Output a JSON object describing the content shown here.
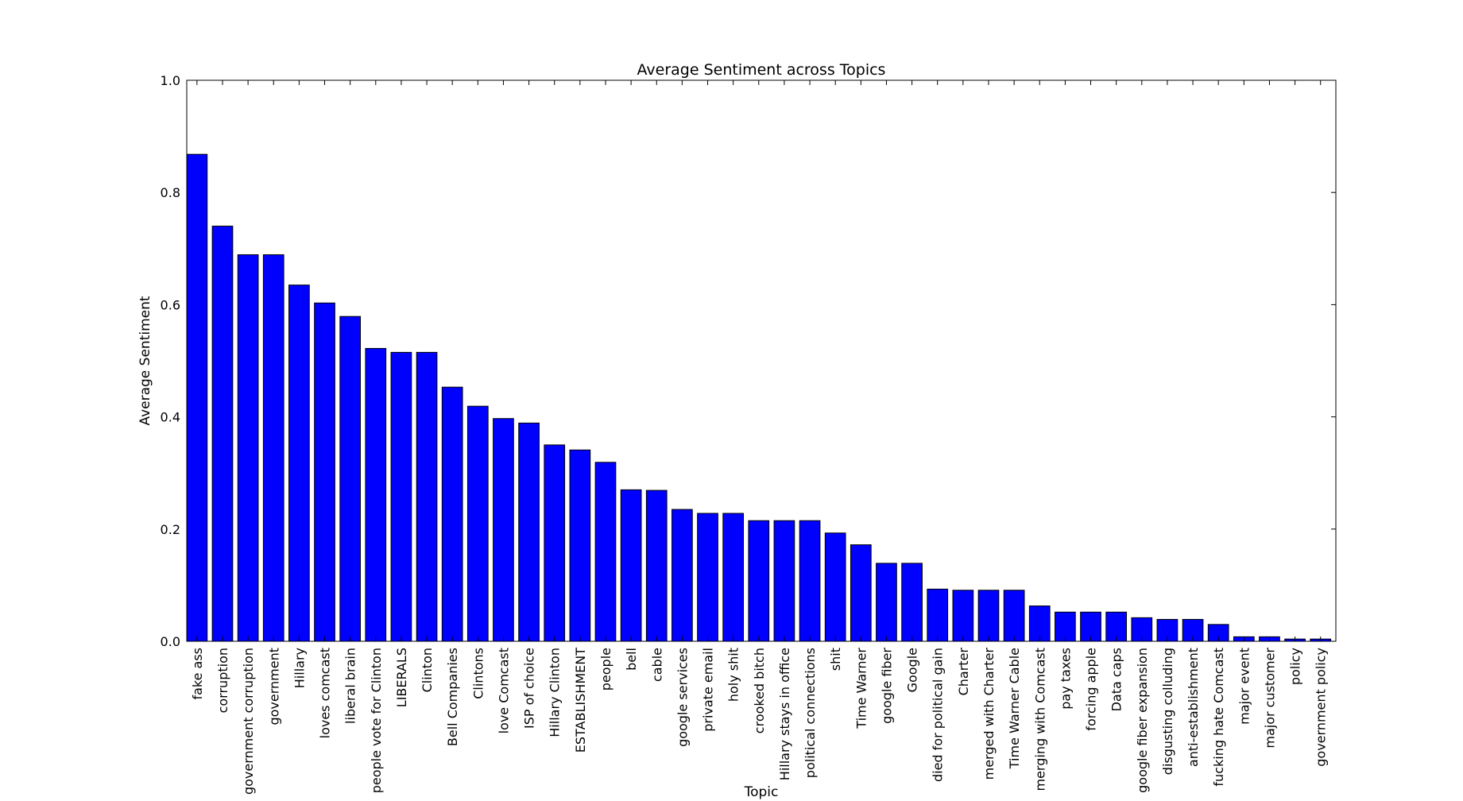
{
  "chart_data": {
    "type": "bar",
    "title": "Average Sentiment across Topics",
    "xlabel": "Topic",
    "ylabel": "Average Sentiment",
    "categories": [
      "fake ass",
      "corruption",
      "government corruption",
      "government",
      "Hillary",
      "loves comcast",
      "liberal brain",
      "people vote for Clinton",
      "LIBERALS",
      "Clinton",
      "Bell Companies",
      "Clintons",
      "love Comcast",
      "ISP of choice",
      "Hillary Clinton",
      "ESTABLISHMENT",
      "people",
      "bell",
      "cable",
      "google services",
      "private email",
      "holy shit",
      "crooked bitch",
      "Hillary stays in office",
      "political connections",
      "shit",
      "Time Warner",
      "google fiber",
      "Google",
      "died for political gain",
      "Charter",
      "merged with Charter",
      "Time Warner Cable",
      "merging with Comcast",
      "pay taxes",
      "forcing apple",
      "Data caps",
      "google fiber expansion",
      "disgusting colluding",
      "anti-establishment",
      "fucking hate Comcast",
      "major event",
      "major customer",
      "policy",
      "government policy"
    ],
    "values": [
      0.868,
      0.74,
      0.689,
      0.689,
      0.635,
      0.603,
      0.579,
      0.522,
      0.515,
      0.515,
      0.453,
      0.419,
      0.397,
      0.389,
      0.35,
      0.341,
      0.319,
      0.27,
      0.269,
      0.235,
      0.228,
      0.228,
      0.215,
      0.215,
      0.215,
      0.193,
      0.172,
      0.139,
      0.139,
      0.093,
      0.091,
      0.091,
      0.091,
      0.063,
      0.052,
      0.052,
      0.052,
      0.042,
      0.039,
      0.039,
      0.03,
      0.008,
      0.008,
      0.004,
      0.004
    ],
    "color": "#0000ff",
    "ylim": [
      0,
      1
    ],
    "yticks": [
      {
        "value": 0,
        "label": "0.0"
      },
      {
        "value": 0.2,
        "label": "0.2"
      },
      {
        "value": 0.4,
        "label": "0.4"
      },
      {
        "value": 0.6,
        "label": "0.6"
      },
      {
        "value": 0.8,
        "label": "0.8"
      },
      {
        "value": 1,
        "label": "1.0"
      }
    ],
    "grid": false
  }
}
